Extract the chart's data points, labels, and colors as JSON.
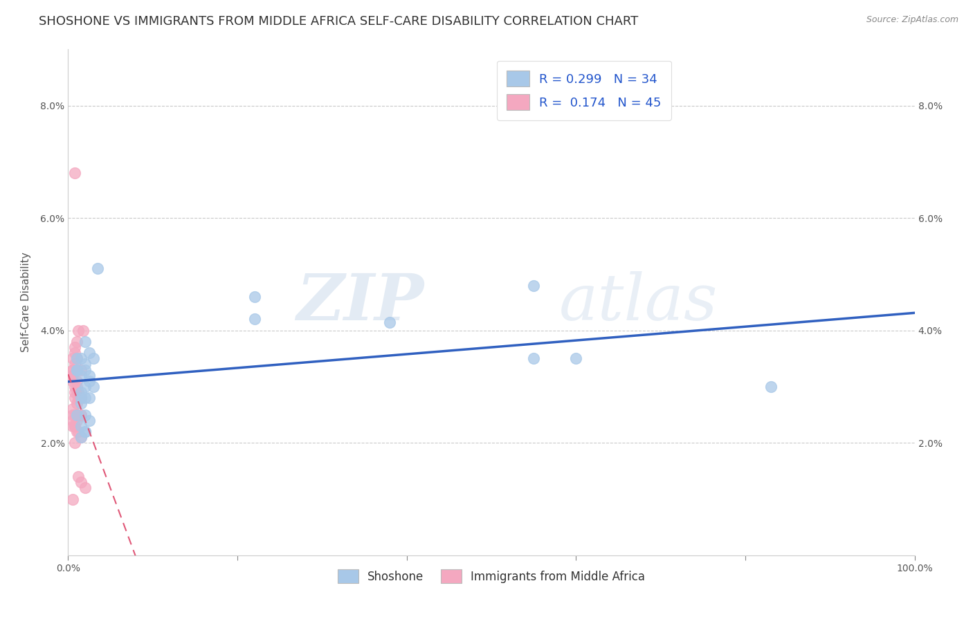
{
  "title": "SHOSHONE VS IMMIGRANTS FROM MIDDLE AFRICA SELF-CARE DISABILITY CORRELATION CHART",
  "source": "Source: ZipAtlas.com",
  "ylabel": "Self-Care Disability",
  "legend_label1": "Shoshone",
  "legend_label2": "Immigrants from Middle Africa",
  "r1": 0.299,
  "n1": 34,
  "r2": 0.174,
  "n2": 45,
  "color1": "#a8c8e8",
  "color2": "#f4a8c0",
  "line1_color": "#3060c0",
  "line2_color": "#e05878",
  "background_color": "#ffffff",
  "grid_color": "#bbbbbb",
  "xlim": [
    0.0,
    1.0
  ],
  "ylim": [
    0.0,
    0.09
  ],
  "xticks": [
    0.0,
    0.2,
    0.4,
    0.6,
    0.8,
    1.0
  ],
  "yticks": [
    0.02,
    0.04,
    0.06,
    0.08
  ],
  "xticklabels": [
    "0.0%",
    "",
    "",
    "",
    "",
    "100.0%"
  ],
  "yticklabels": [
    "2.0%",
    "4.0%",
    "6.0%",
    "8.0%"
  ],
  "shoshone_x": [
    0.02,
    0.015,
    0.025,
    0.01,
    0.03,
    0.02,
    0.015,
    0.01,
    0.025,
    0.02,
    0.015,
    0.025,
    0.01,
    0.02,
    0.03,
    0.035,
    0.02,
    0.025,
    0.015,
    0.01,
    0.02,
    0.22,
    0.22,
    0.38,
    0.55,
    0.55,
    0.015,
    0.015,
    0.025,
    0.02,
    0.6,
    0.015,
    0.02,
    0.83
  ],
  "shoshone_y": [
    0.033,
    0.035,
    0.032,
    0.033,
    0.03,
    0.028,
    0.027,
    0.035,
    0.036,
    0.03,
    0.032,
    0.031,
    0.033,
    0.034,
    0.035,
    0.051,
    0.038,
    0.028,
    0.029,
    0.025,
    0.025,
    0.042,
    0.046,
    0.0415,
    0.048,
    0.035,
    0.023,
    0.021,
    0.024,
    0.022,
    0.035,
    0.028,
    0.022,
    0.03
  ],
  "immigrant_x": [
    0.005,
    0.008,
    0.01,
    0.005,
    0.01,
    0.015,
    0.005,
    0.008,
    0.01,
    0.005,
    0.008,
    0.01,
    0.012,
    0.008,
    0.005,
    0.015,
    0.01,
    0.005,
    0.008,
    0.012,
    0.005,
    0.008,
    0.015,
    0.018,
    0.012,
    0.01,
    0.008,
    0.005,
    0.012,
    0.015,
    0.008,
    0.01,
    0.005,
    0.008,
    0.012,
    0.015,
    0.02,
    0.01,
    0.008,
    0.012,
    0.005,
    0.01,
    0.008,
    0.015,
    0.005
  ],
  "immigrant_y": [
    0.033,
    0.03,
    0.029,
    0.032,
    0.027,
    0.028,
    0.035,
    0.034,
    0.031,
    0.033,
    0.036,
    0.03,
    0.029,
    0.028,
    0.032,
    0.033,
    0.035,
    0.031,
    0.029,
    0.028,
    0.026,
    0.025,
    0.025,
    0.04,
    0.04,
    0.038,
    0.037,
    0.023,
    0.022,
    0.021,
    0.02,
    0.024,
    0.025,
    0.023,
    0.014,
    0.013,
    0.012,
    0.025,
    0.068,
    0.025,
    0.024,
    0.022,
    0.023,
    0.025,
    0.01
  ],
  "watermark_zip": "ZIP",
  "watermark_atlas": "atlas",
  "title_fontsize": 13,
  "axis_fontsize": 11,
  "tick_fontsize": 10,
  "legend_fontsize": 12
}
